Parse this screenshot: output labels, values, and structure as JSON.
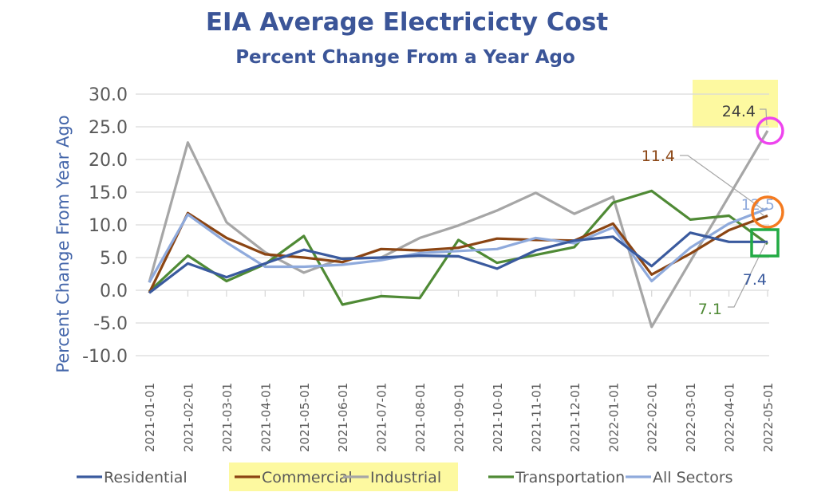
{
  "chart_data": {
    "type": "line",
    "title": "EIA Average Electricicty Cost",
    "subtitle": "Percent Change From a Year Ago",
    "xlabel": "",
    "ylabel": "Percent Change From Year Ago",
    "ylim": [
      -10,
      30
    ],
    "yticks": [
      30,
      25,
      20,
      15,
      10,
      5,
      0,
      -5,
      -10
    ],
    "ytick_labels": [
      "30.0",
      "25.0",
      "20.0",
      "15.0",
      "10.0",
      "5.0",
      "0.0",
      "-5.0",
      "-10.0"
    ],
    "grid": true,
    "legend_position": "bottom",
    "x": [
      "2021-01-01",
      "2021-02-01",
      "2021-03-01",
      "2021-04-01",
      "2021-05-01",
      "2021-06-01",
      "2021-07-01",
      "2021-08-01",
      "2021-09-01",
      "2021-10-01",
      "2021-11-01",
      "2021-12-01",
      "2022-01-01",
      "2022-02-01",
      "2022-03-01",
      "2022-04-01",
      "2022-05-01"
    ],
    "series": [
      {
        "name": "Residential",
        "color": "#3a5a9e",
        "values": [
          -0.4,
          4.1,
          2.0,
          4.1,
          6.2,
          4.8,
          5.0,
          5.3,
          5.2,
          3.3,
          6.1,
          7.6,
          8.2,
          3.7,
          8.8,
          7.4,
          7.4
        ]
      },
      {
        "name": "Commercial",
        "color": "#8b4513",
        "values": [
          -0.4,
          11.8,
          8.0,
          5.5,
          5.0,
          4.3,
          6.3,
          6.1,
          6.5,
          7.9,
          7.7,
          7.6,
          10.2,
          2.4,
          5.6,
          9.2,
          11.4
        ]
      },
      {
        "name": "Industrial",
        "color": "#a6a6a6",
        "values": [
          1.2,
          22.6,
          10.4,
          5.8,
          2.7,
          4.9,
          5.0,
          8.0,
          9.9,
          12.2,
          14.9,
          11.7,
          14.3,
          -5.6,
          4.4,
          14.4,
          24.4
        ]
      },
      {
        "name": "Transportation",
        "color": "#4f8a35",
        "values": [
          -0.2,
          5.3,
          1.4,
          4.0,
          8.3,
          -2.2,
          -0.9,
          -1.2,
          7.7,
          4.2,
          5.4,
          6.6,
          13.4,
          15.2,
          10.8,
          11.4,
          7.1
        ]
      },
      {
        "name": "All Sectors",
        "color": "#8faadc",
        "values": [
          1.2,
          11.6,
          7.3,
          3.6,
          3.6,
          3.9,
          4.6,
          5.7,
          6.0,
          6.3,
          8.0,
          7.2,
          9.6,
          1.4,
          6.5,
          10.2,
          12.5
        ]
      }
    ],
    "data_labels": [
      {
        "series": "Industrial",
        "text": "24.4",
        "color": "#404040",
        "highlight": "#fdf9a0"
      },
      {
        "series": "Commercial",
        "text": "11.4",
        "color": "#8b4513"
      },
      {
        "series": "All Sectors",
        "text": "12.5",
        "color": "#8faadc"
      },
      {
        "series": "Residential",
        "text": "7.4",
        "color": "#3a5a9e"
      },
      {
        "series": "Transportation",
        "text": "7.1",
        "color": "#4f8a35"
      }
    ],
    "annotations": [
      {
        "shape": "circle",
        "color": "#ee44ee",
        "target": "Industrial 2022-05-01"
      },
      {
        "shape": "circle",
        "color": "#f47b20",
        "target": "Commercial / All Sectors 2022-05-01"
      },
      {
        "shape": "square",
        "color": "#22aa44",
        "target": "Residential / Transportation 2022-05-01"
      }
    ],
    "legend_highlight": {
      "series": "Industrial",
      "color": "#fdf9a0"
    }
  }
}
